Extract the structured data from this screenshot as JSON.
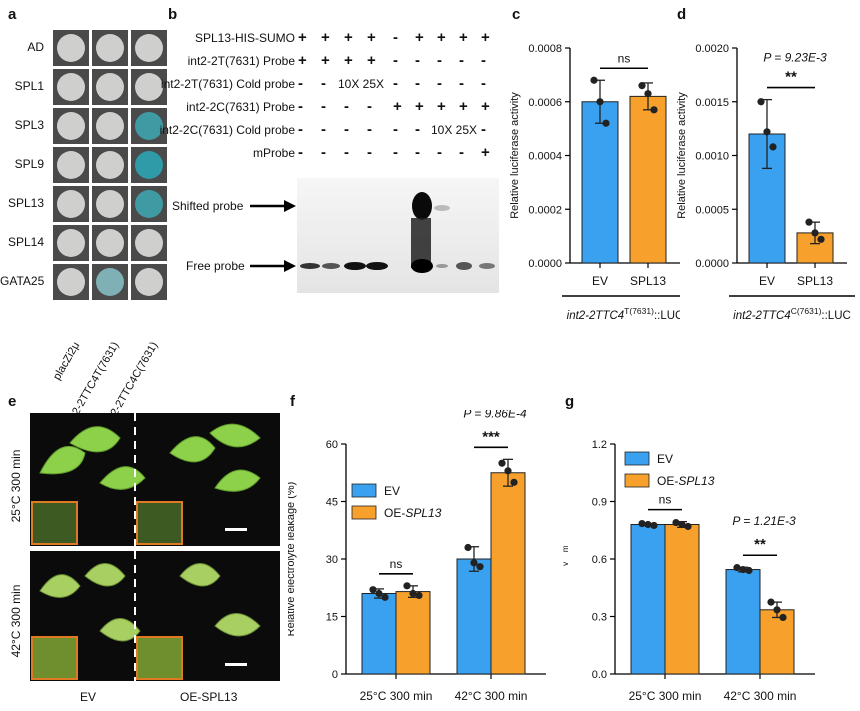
{
  "panels": {
    "a": {
      "label": "a",
      "rows": [
        "AD",
        "SPL1",
        "SPL3",
        "SPL9",
        "SPL13",
        "SPL14",
        "GATA25"
      ],
      "columns": [
        "placZi2μ",
        "int2-2TTC4T(7631)",
        "int2-2TTC4C(7631)"
      ],
      "colors": {
        "dish_bg": "#4a4a4a",
        "colony_white": "#cfd0cd",
        "colony_blue": "#3f9aa3"
      }
    },
    "b": {
      "label": "b",
      "conditions": [
        {
          "name": "SPL13-HIS-SUMO",
          "marks": [
            "+",
            "+",
            "+",
            "+",
            "-",
            "+",
            "+",
            "+",
            "+"
          ]
        },
        {
          "name": "int2-2T(7631) Probe",
          "marks": [
            "+",
            "+",
            "+",
            "+",
            "-",
            "-",
            "-",
            "-",
            "-"
          ]
        },
        {
          "name": "int2-2T(7631) Cold probe",
          "marks": [
            "-",
            "-",
            "10X",
            "25X",
            "-",
            "-",
            "-",
            "-",
            "-"
          ]
        },
        {
          "name": "int2-2C(7631) Probe",
          "marks": [
            "-",
            "-",
            "-",
            "-",
            "+",
            "+",
            "+",
            "+",
            "+"
          ]
        },
        {
          "name": "int2-2C(7631) Cold probe",
          "marks": [
            "-",
            "-",
            "-",
            "-",
            "-",
            "-",
            "10X",
            "25X",
            "-"
          ]
        },
        {
          "name": "mProbe",
          "marks": [
            "-",
            "-",
            "-",
            "-",
            "-",
            "-",
            "-",
            "-",
            "+"
          ]
        }
      ],
      "shifted_label": "Shifted probe",
      "free_label": "Free probe"
    },
    "c": {
      "label": "c",
      "ylabel": "Relative luciferase activity",
      "yticks": [
        "0.0000",
        "0.0002",
        "0.0004",
        "0.0006",
        "0.0008"
      ],
      "ymax": 0.0008,
      "categories": [
        "EV",
        "SPL13"
      ],
      "values": [
        0.0006,
        0.00062
      ],
      "errors": [
        8e-05,
        5e-05
      ],
      "points": [
        [
          0.00068,
          0.0006,
          0.00052
        ],
        [
          0.00066,
          0.00063,
          0.00057
        ]
      ],
      "sig": "ns",
      "construct_base": "int2-2TTC4",
      "construct_sup": "T(7631)",
      "construct_suffix": "::LUC"
    },
    "d": {
      "label": "d",
      "ylabel": "Relative luciferase activity",
      "yticks": [
        "0.0000",
        "0.0005",
        "0.0010",
        "0.0015",
        "0.0020"
      ],
      "ymax": 0.002,
      "categories": [
        "EV",
        "SPL13"
      ],
      "values": [
        0.0012,
        0.00028
      ],
      "errors": [
        0.00032,
        0.0001
      ],
      "points": [
        [
          0.0015,
          0.00122,
          0.00108
        ],
        [
          0.00038,
          0.00028,
          0.00022
        ]
      ],
      "sig": "**",
      "pvalue": "P = 9.23E-3",
      "construct_base": "int2-2TTC4",
      "construct_sup": "C(7631)",
      "construct_suffix": "::LUC"
    },
    "e": {
      "label": "e",
      "rows": [
        "25°C 300 min",
        "42°C 300 min"
      ],
      "columns": [
        "EV",
        "OE-SPL13"
      ]
    },
    "f": {
      "label": "f",
      "ylabel": "Relative electrolyte leakage (%)",
      "yticks": [
        "0",
        "15",
        "30",
        "45",
        "60"
      ],
      "ymax": 60,
      "categories": [
        "25°C 300 min",
        "42°C 300 min"
      ],
      "legend": [
        "EV",
        "OE-SPL13"
      ],
      "series": [
        {
          "name": "EV",
          "values": [
            21,
            30
          ],
          "errors": [
            1.2,
            3.2
          ],
          "points": [
            [
              22,
              21,
              20
            ],
            [
              33,
              29,
              28
            ]
          ]
        },
        {
          "name": "OE-SPL13",
          "values": [
            21.5,
            52.5
          ],
          "errors": [
            1.5,
            3.5
          ],
          "points": [
            [
              23,
              21,
              20.5
            ],
            [
              55,
              53,
              50
            ]
          ]
        }
      ],
      "sig": [
        "ns",
        "***"
      ],
      "pvalue": "P = 9.86E-4"
    },
    "g": {
      "label": "g",
      "ylabel": "Fv/Fm",
      "yticks": [
        "0.0",
        "0.3",
        "0.6",
        "0.9",
        "1.2"
      ],
      "ymax": 1.2,
      "categories": [
        "25°C 300 min",
        "42°C 300 min"
      ],
      "legend": [
        "EV",
        "OE-SPL13"
      ],
      "series": [
        {
          "name": "EV",
          "values": [
            0.78,
            0.545
          ],
          "errors": [
            0.005,
            0.012
          ],
          "points": [
            [
              0.785,
              0.78,
              0.775
            ],
            [
              0.555,
              0.545,
              0.54
            ]
          ]
        },
        {
          "name": "OE-SPL13",
          "values": [
            0.78,
            0.335
          ],
          "errors": [
            0.015,
            0.04
          ],
          "points": [
            [
              0.79,
              0.78,
              0.77
            ],
            [
              0.375,
              0.335,
              0.295
            ]
          ]
        }
      ],
      "sig": [
        "ns",
        "**"
      ],
      "pvalue": "P = 1.21E-3"
    }
  },
  "colors": {
    "blue": "#3aa0f0",
    "orange": "#f7a12c",
    "inset": "#e07a22"
  }
}
